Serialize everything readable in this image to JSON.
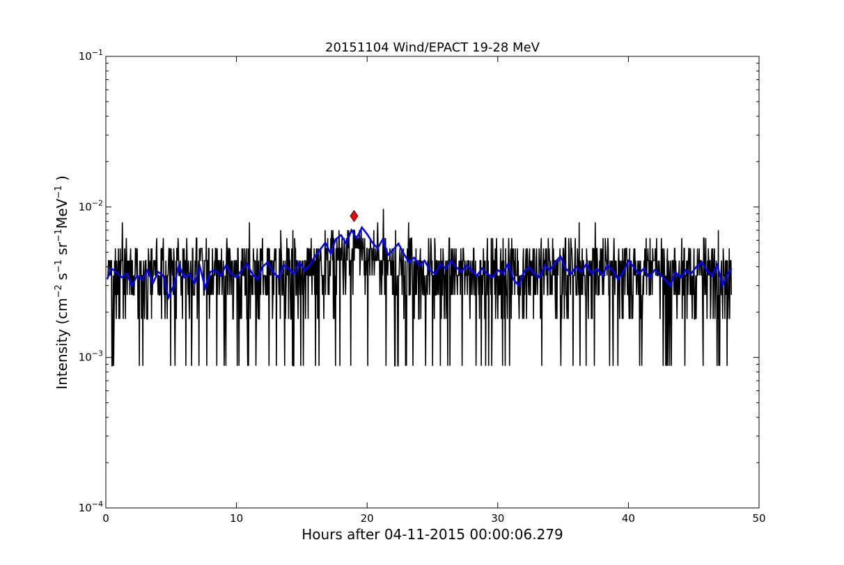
{
  "chart_data": {
    "type": "line",
    "title": "20151104 Wind/EPACT 19-28 MeV",
    "xlabel": "Hours after 04-11-2015 00:00:06.279",
    "ylabel": {
      "prefix": "Intensity (cm",
      "sup1": "−2",
      "mid1": " s",
      "sup2": "−1",
      "mid2": " sr",
      "sup3": "−1",
      "mid3": "MeV",
      "sup4": "−1",
      "suffix": " )"
    },
    "xlim": [
      0,
      50
    ],
    "ylim": [
      0.0001,
      0.1
    ],
    "yscale": "log",
    "x_ticks": [
      {
        "value": 0,
        "label": "0"
      },
      {
        "value": 10,
        "label": "10"
      },
      {
        "value": 20,
        "label": "20"
      },
      {
        "value": 30,
        "label": "30"
      },
      {
        "value": 40,
        "label": "40"
      },
      {
        "value": 50,
        "label": "50"
      }
    ],
    "y_ticks": [
      {
        "value": 0.0001,
        "base": "10",
        "exp": "−4"
      },
      {
        "value": 0.001,
        "base": "10",
        "exp": "−3"
      },
      {
        "value": 0.01,
        "base": "10",
        "exp": "−2"
      },
      {
        "value": 0.1,
        "base": "10",
        "exp": "−1"
      }
    ],
    "grid": false,
    "legend": "none",
    "series": [
      {
        "color": "#000000",
        "style": "raw",
        "x_start": 0.1,
        "x_step": 0.0333,
        "n": 1436,
        "levels": [
          0.00088,
          0.0018,
          0.0026,
          0.0035,
          0.0044,
          0.0053,
          0.0062,
          0.007,
          0.0079,
          0.0088,
          0.0097
        ]
      },
      {
        "color": "#0000ff",
        "style": "smoothed",
        "x": [
          0.1,
          0.4,
          0.8,
          1.2,
          1.6,
          2.0,
          2.4,
          2.8,
          3.2,
          3.6,
          4.0,
          4.4,
          4.8,
          5.2,
          5.6,
          6.0,
          6.4,
          6.8,
          7.2,
          7.6,
          8.0,
          8.4,
          8.8,
          9.2,
          9.6,
          10.0,
          10.4,
          10.8,
          11.2,
          11.6,
          12.0,
          12.4,
          12.8,
          13.2,
          13.6,
          14.0,
          14.4,
          14.8,
          15.2,
          15.6,
          16.0,
          16.4,
          16.8,
          17.2,
          17.6,
          18.0,
          18.4,
          18.8,
          19.2,
          19.6,
          20.0,
          20.4,
          20.8,
          21.2,
          21.6,
          22.0,
          22.4,
          22.8,
          23.2,
          23.6,
          24.0,
          24.4,
          24.8,
          25.2,
          25.6,
          26.0,
          26.4,
          26.8,
          27.2,
          27.6,
          28.0,
          28.4,
          28.8,
          29.2,
          29.6,
          30.0,
          30.4,
          30.8,
          31.2,
          31.6,
          32.0,
          32.4,
          32.8,
          33.2,
          33.6,
          34.0,
          34.4,
          34.8,
          35.2,
          35.6,
          36.0,
          36.4,
          36.8,
          37.2,
          37.6,
          38.0,
          38.4,
          38.8,
          39.2,
          39.6,
          40.0,
          40.4,
          40.8,
          41.2,
          41.6,
          42.0,
          42.4,
          42.8,
          43.2,
          43.6,
          44.0,
          44.4,
          44.8,
          45.2,
          45.6,
          46.0,
          46.4,
          46.8,
          47.2,
          47.6,
          47.9
        ],
        "y": [
          0.0033,
          0.0039,
          0.0037,
          0.0034,
          0.0036,
          0.003,
          0.0035,
          0.0033,
          0.0038,
          0.0031,
          0.0037,
          0.0035,
          0.0025,
          0.003,
          0.0041,
          0.0034,
          0.0036,
          0.0031,
          0.004,
          0.0029,
          0.0037,
          0.0038,
          0.0035,
          0.0041,
          0.0036,
          0.0034,
          0.0038,
          0.0042,
          0.0036,
          0.0033,
          0.004,
          0.0043,
          0.0037,
          0.0034,
          0.0041,
          0.0039,
          0.0036,
          0.0043,
          0.0038,
          0.0041,
          0.0047,
          0.0052,
          0.0058,
          0.0049,
          0.0061,
          0.0065,
          0.0057,
          0.007,
          0.0062,
          0.0073,
          0.0066,
          0.0058,
          0.0053,
          0.0061,
          0.0048,
          0.0052,
          0.0057,
          0.0049,
          0.0043,
          0.0046,
          0.0041,
          0.0044,
          0.0038,
          0.0036,
          0.0042,
          0.0039,
          0.0044,
          0.004,
          0.0037,
          0.0041,
          0.0038,
          0.0035,
          0.0039,
          0.0036,
          0.0034,
          0.0038,
          0.0036,
          0.0042,
          0.0033,
          0.003,
          0.0037,
          0.004,
          0.0036,
          0.0034,
          0.0041,
          0.0038,
          0.0043,
          0.0047,
          0.0039,
          0.0036,
          0.004,
          0.0037,
          0.0042,
          0.0036,
          0.0039,
          0.0035,
          0.0041,
          0.0038,
          0.0033,
          0.0037,
          0.0044,
          0.004,
          0.0036,
          0.0039,
          0.0034,
          0.0038,
          0.0036,
          0.0033,
          0.003,
          0.0037,
          0.0034,
          0.0038,
          0.0036,
          0.004,
          0.0043,
          0.0038,
          0.0035,
          0.0041,
          0.003,
          0.0036,
          0.0039
        ]
      }
    ],
    "marker": {
      "x": 19.0,
      "y": 0.0087,
      "shape": "diamond",
      "color": "#ff0000"
    }
  }
}
